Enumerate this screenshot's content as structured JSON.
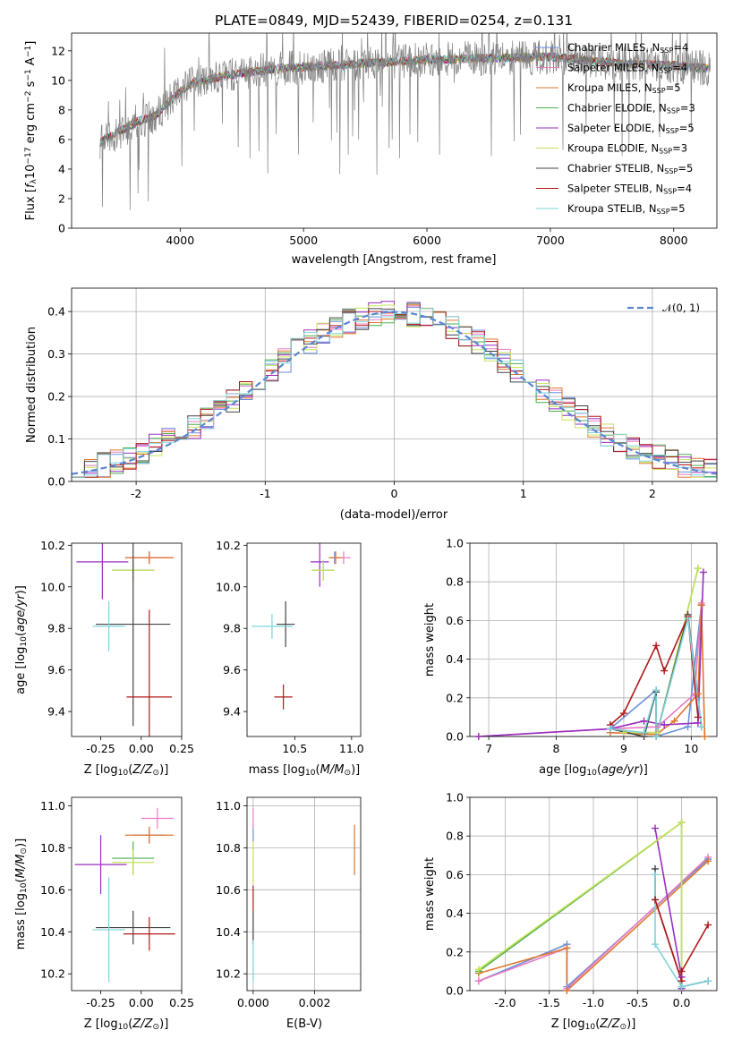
{
  "colors": {
    "Chabrier MILES": "#6a8fd8",
    "Salpeter MILES": "#e87cc0",
    "Kroupa MILES": "#e0762c",
    "Chabrier ELODIE": "#4fae4f",
    "Salpeter ELODIE": "#9a2fbf",
    "Kroupa ELODIE": "#c8e35a",
    "Chabrier STELIB": "#444444",
    "Salpeter STELIB": "#b01818",
    "Kroupa STELIB": "#7fd4dc",
    "data": "#808080",
    "normal": "#5b86d1"
  },
  "chart_data": [
    {
      "id": "spectrum",
      "type": "line",
      "title": "PLATE=0849, MJD=52439, FIBERID=0254, z=0.131",
      "xlabel": "wavelength [Angstrom, rest frame]",
      "ylabel": "Flux [f_λ 10^-17 erg cm^-2 s^-1 A^-1]",
      "xlim": [
        3120,
        8350
      ],
      "ylim": [
        0,
        13.2
      ],
      "xticks": [
        4000,
        5000,
        6000,
        7000,
        8000
      ],
      "yticks": [
        0,
        2,
        4,
        6,
        8,
        10,
        12
      ],
      "grid": false,
      "legend_position": "right",
      "continuum": {
        "x": [
          3350,
          3500,
          3650,
          3800,
          3950,
          4100,
          4300,
          4500,
          4800,
          5200,
          5600,
          6000,
          6500,
          7000,
          7500,
          8000,
          8300
        ],
        "y": [
          5.8,
          6.5,
          7.2,
          7.6,
          8.9,
          9.8,
          10.2,
          10.5,
          10.8,
          11.0,
          11.2,
          11.4,
          11.5,
          11.6,
          11.2,
          11.0,
          10.8
        ]
      },
      "legend": [
        {
          "label": "Chabrier MILES, N_SSP=4",
          "text": "Chabrier MILES, N",
          "sub": "SSP",
          "suffix": "=4",
          "color_key": "Chabrier MILES"
        },
        {
          "label": "Salpeter MILES, N_SSP=4",
          "text": "Salpeter MILES, N",
          "sub": "SSP",
          "suffix": "=4",
          "color_key": "Salpeter MILES"
        },
        {
          "label": "Kroupa MILES, N_SSP=5",
          "text": "Kroupa MILES, N",
          "sub": "SSP",
          "suffix": "=5",
          "color_key": "Kroupa MILES"
        },
        {
          "label": "Chabrier ELODIE, N_SSP=3",
          "text": "Chabrier ELODIE, N",
          "sub": "SSP",
          "suffix": "=3",
          "color_key": "Chabrier ELODIE"
        },
        {
          "label": "Salpeter ELODIE, N_SSP=5",
          "text": "Salpeter ELODIE, N",
          "sub": "SSP",
          "suffix": "=5",
          "color_key": "Salpeter ELODIE"
        },
        {
          "label": "Kroupa ELODIE, N_SSP=3",
          "text": "Kroupa ELODIE, N",
          "sub": "SSP",
          "suffix": "=3",
          "color_key": "Kroupa ELODIE"
        },
        {
          "label": "Chabrier STELIB, N_SSP=5",
          "text": "Chabrier STELIB, N",
          "sub": "SSP",
          "suffix": "=5",
          "color_key": "Chabrier STELIB"
        },
        {
          "label": "Salpeter STELIB, N_SSP=4",
          "text": "Salpeter STELIB, N",
          "sub": "SSP",
          "suffix": "=4",
          "color_key": "Salpeter STELIB"
        },
        {
          "label": "Kroupa STELIB, N_SSP=5",
          "text": "Kroupa STELIB, N",
          "sub": "SSP",
          "suffix": "=5",
          "color_key": "Kroupa STELIB"
        }
      ]
    },
    {
      "id": "residuals",
      "type": "step",
      "xlabel": "(data-model)/error",
      "ylabel": "Normed distribution",
      "xlim": [
        -2.5,
        2.5
      ],
      "ylim": [
        0,
        0.455
      ],
      "xticks": [
        -2,
        -1,
        0,
        1,
        2
      ],
      "yticks": [
        0.0,
        0.1,
        0.2,
        0.3,
        0.4
      ],
      "grid": true,
      "legend_position": "top-right",
      "normal_label": "𝒩(0, 1)",
      "bin_width": 0.1
    },
    {
      "id": "z_age",
      "type": "errorbar",
      "xlabel": "Z [log10(Z/Z⊙)]",
      "ylabel": "age [log10(age/yr)]",
      "xlim": [
        -0.43,
        0.25
      ],
      "ylim": [
        9.28,
        10.21
      ],
      "xticks": [
        -0.25,
        0.0,
        0.25
      ],
      "yticks": [
        9.4,
        9.6,
        9.8,
        10.0,
        10.2
      ],
      "points": [
        {
          "model": "Chabrier MILES",
          "x": 0.05,
          "xerr": 0.1,
          "y": 10.14,
          "yerr": 0.03
        },
        {
          "model": "Salpeter MILES",
          "x": 0.05,
          "xerr": 0.15,
          "y": 10.14,
          "yerr": 0.03
        },
        {
          "model": "Kroupa MILES",
          "x": 0.05,
          "xerr": 0.15,
          "y": 10.14,
          "yerr": 0.03
        },
        {
          "model": "Chabrier ELODIE",
          "x": -0.05,
          "xerr": 0.13,
          "y": 10.08,
          "yerr": 0.05
        },
        {
          "model": "Salpeter ELODIE",
          "x": -0.24,
          "xerr": 0.16,
          "y": 10.12,
          "yerr": 0.18
        },
        {
          "model": "Kroupa ELODIE",
          "x": -0.05,
          "xerr": 0.13,
          "y": 10.08,
          "yerr": 0.05
        },
        {
          "model": "Chabrier STELIB",
          "x": -0.05,
          "xerr": 0.23,
          "y": 9.82,
          "yerr": 0.49
        },
        {
          "model": "Salpeter STELIB",
          "x": 0.05,
          "xerr": 0.14,
          "y": 9.47,
          "yerr": 0.42
        },
        {
          "model": "Kroupa STELIB",
          "x": -0.2,
          "xerr": 0.1,
          "y": 9.81,
          "yerr": 0.12
        }
      ]
    },
    {
      "id": "mass_age",
      "type": "errorbar",
      "xlabel": "mass [log10(M/M⊙)]",
      "ylabel": "",
      "xlim": [
        10.08,
        11.08
      ],
      "ylim": [
        9.28,
        10.21
      ],
      "xticks": [
        10.5,
        11.0
      ],
      "yticks": [
        9.4,
        9.6,
        9.8,
        10.0,
        10.2
      ],
      "points": [
        {
          "model": "Chabrier MILES",
          "x": 10.85,
          "xerr": 0.05,
          "y": 10.14,
          "yerr": 0.03
        },
        {
          "model": "Salpeter MILES",
          "x": 10.93,
          "xerr": 0.06,
          "y": 10.14,
          "yerr": 0.03
        },
        {
          "model": "Kroupa MILES",
          "x": 10.86,
          "xerr": 0.06,
          "y": 10.14,
          "yerr": 0.03
        },
        {
          "model": "Chabrier ELODIE",
          "x": 10.75,
          "xerr": 0.1,
          "y": 10.08,
          "yerr": 0.05
        },
        {
          "model": "Salpeter ELODIE",
          "x": 10.72,
          "xerr": 0.08,
          "y": 10.12,
          "yerr": 0.12
        },
        {
          "model": "Kroupa ELODIE",
          "x": 10.75,
          "xerr": 0.1,
          "y": 10.08,
          "yerr": 0.05
        },
        {
          "model": "Chabrier STELIB",
          "x": 10.42,
          "xerr": 0.08,
          "y": 9.82,
          "yerr": 0.11
        },
        {
          "model": "Salpeter STELIB",
          "x": 10.4,
          "xerr": 0.08,
          "y": 9.47,
          "yerr": 0.06
        },
        {
          "model": "Kroupa STELIB",
          "x": 10.3,
          "xerr": 0.18,
          "y": 9.81,
          "yerr": 0.06
        }
      ]
    },
    {
      "id": "age_weight",
      "type": "line",
      "xlabel": "age [log10(age/yr)]",
      "ylabel": "mass weight",
      "xlim": [
        6.72,
        10.38
      ],
      "ylim": [
        0,
        1.0
      ],
      "xticks": [
        7,
        8,
        9,
        10
      ],
      "yticks": [
        0.0,
        0.2,
        0.4,
        0.6,
        0.8,
        1.0
      ],
      "grid": true,
      "series": [
        {
          "model": "Chabrier MILES",
          "x": [
            8.8,
            9.48,
            9.48,
            9.95,
            10.15
          ],
          "y": [
            0.04,
            0.24,
            0.0,
            0.05,
            0.68
          ]
        },
        {
          "model": "Salpeter MILES",
          "x": [
            6.85,
            8.8,
            9.5,
            10.05,
            10.15
          ],
          "y": [
            0.0,
            0.04,
            0.05,
            0.22,
            0.69
          ]
        },
        {
          "model": "Kroupa MILES",
          "x": [
            8.8,
            9.48,
            9.75,
            10.1,
            10.15,
            10.2
          ],
          "y": [
            0.02,
            0.01,
            0.08,
            0.22,
            0.68,
            0.0
          ]
        },
        {
          "model": "Chabrier ELODIE",
          "x": [
            9.0,
            9.5,
            10.1
          ],
          "y": [
            0.02,
            0.02,
            0.87
          ]
        },
        {
          "model": "Salpeter ELODIE",
          "x": [
            6.85,
            8.8,
            9.3,
            9.6,
            10.1,
            10.18
          ],
          "y": [
            0.0,
            0.04,
            0.08,
            0.06,
            0.07,
            0.85
          ]
        },
        {
          "model": "Kroupa ELODIE",
          "x": [
            9.0,
            9.5,
            10.1
          ],
          "y": [
            0.02,
            0.02,
            0.87
          ]
        },
        {
          "model": "Chabrier STELIB",
          "x": [
            8.8,
            9.3,
            9.48,
            9.48,
            9.95,
            10.15
          ],
          "y": [
            0.04,
            0.0,
            0.23,
            0.0,
            0.63,
            0.05
          ]
        },
        {
          "model": "Salpeter STELIB",
          "x": [
            8.8,
            9.0,
            9.48,
            9.6,
            9.95,
            10.1
          ],
          "y": [
            0.06,
            0.12,
            0.47,
            0.34,
            0.62,
            0.1
          ]
        },
        {
          "model": "Kroupa STELIB",
          "x": [
            8.8,
            9.3,
            9.48,
            9.48,
            9.95,
            10.15
          ],
          "y": [
            0.04,
            0.02,
            0.24,
            0.0,
            0.61,
            0.05
          ]
        }
      ]
    },
    {
      "id": "z_mass",
      "type": "errorbar",
      "xlabel": "Z [log10(Z/Z⊙)]",
      "ylabel": "mass [log10(M/M⊙)]",
      "xlim": [
        -0.43,
        0.25
      ],
      "ylim": [
        10.12,
        11.04
      ],
      "xticks": [
        -0.25,
        0.0,
        0.25
      ],
      "yticks": [
        10.2,
        10.4,
        10.6,
        10.8,
        11.0
      ],
      "points": [
        {
          "model": "Chabrier MILES",
          "x": 0.05,
          "xerr": 0.1,
          "y": 10.86,
          "yerr": 0.04
        },
        {
          "model": "Salpeter MILES",
          "x": 0.1,
          "xerr": 0.1,
          "y": 10.94,
          "yerr": 0.05
        },
        {
          "model": "Kroupa MILES",
          "x": 0.05,
          "xerr": 0.15,
          "y": 10.86,
          "yerr": 0.04
        },
        {
          "model": "Chabrier ELODIE",
          "x": -0.05,
          "xerr": 0.13,
          "y": 10.75,
          "yerr": 0.08
        },
        {
          "model": "Salpeter ELODIE",
          "x": -0.25,
          "xerr": 0.16,
          "y": 10.72,
          "yerr": 0.14
        },
        {
          "model": "Kroupa ELODIE",
          "x": -0.05,
          "xerr": 0.13,
          "y": 10.73,
          "yerr": 0.06
        },
        {
          "model": "Chabrier STELIB",
          "x": -0.05,
          "xerr": 0.23,
          "y": 10.42,
          "yerr": 0.08
        },
        {
          "model": "Salpeter STELIB",
          "x": 0.05,
          "xerr": 0.16,
          "y": 10.39,
          "yerr": 0.08
        },
        {
          "model": "Kroupa STELIB",
          "x": -0.2,
          "xerr": 0.1,
          "y": 10.41,
          "yerr": 0.25
        }
      ]
    },
    {
      "id": "ebv_mass",
      "type": "errorbar",
      "xlabel": "E(B-V)",
      "ylabel": "",
      "xlim": [
        -0.0002,
        0.0035
      ],
      "ylim": [
        10.12,
        11.04
      ],
      "xticks": [
        0.0,
        0.002
      ],
      "yticks": [
        10.2,
        10.4,
        10.6,
        10.8,
        11.0
      ],
      "grid": true,
      "points": [
        {
          "model": "Salpeter MILES",
          "x": 0.0,
          "xerr": 0,
          "y": 10.94,
          "yerr": 0.05
        },
        {
          "model": "Chabrier MILES",
          "x": 0.0,
          "xerr": 0,
          "y": 10.86,
          "yerr": 0.03
        },
        {
          "model": "Kroupa MILES",
          "x": 0.0033,
          "xerr": 0,
          "y": 10.79,
          "yerr": 0.12
        },
        {
          "model": "Kroupa ELODIE",
          "x": 0.0,
          "xerr": 0,
          "y": 10.73,
          "yerr": 0.1
        },
        {
          "model": "Salpeter STELIB",
          "x": 0.0,
          "xerr": 0,
          "y": 10.56,
          "yerr": 0.06
        },
        {
          "model": "Chabrier STELIB",
          "x": 0.0,
          "xerr": 0,
          "y": 10.42,
          "yerr": 0.08
        },
        {
          "model": "Kroupa STELIB",
          "x": 0.0,
          "xerr": 0,
          "y": 10.26,
          "yerr": 0.1
        }
      ]
    },
    {
      "id": "z_weight",
      "type": "line",
      "xlabel": "Z [log10(Z/Z⊙)]",
      "ylabel": "mass weight",
      "xlim": [
        -2.4,
        0.4
      ],
      "ylim": [
        0,
        1.0
      ],
      "xticks": [
        -2.0,
        -1.5,
        -1.0,
        -0.5,
        0.0
      ],
      "yticks": [
        0.0,
        0.2,
        0.4,
        0.6,
        0.8,
        1.0
      ],
      "grid": true,
      "series": [
        {
          "model": "Chabrier MILES",
          "x": [
            -2.3,
            -1.3,
            -1.3,
            0.3
          ],
          "y": [
            0.05,
            0.24,
            0.02,
            0.68
          ]
        },
        {
          "model": "Salpeter MILES",
          "x": [
            -2.3,
            -1.3,
            -1.3,
            0.3
          ],
          "y": [
            0.05,
            0.22,
            0.01,
            0.69
          ]
        },
        {
          "model": "Kroupa MILES",
          "x": [
            -2.3,
            -1.3,
            -1.3,
            0.3
          ],
          "y": [
            0.09,
            0.22,
            0.0,
            0.67
          ]
        },
        {
          "model": "Chabrier ELODIE",
          "x": [
            -2.3,
            0.0,
            0.0
          ],
          "y": [
            0.1,
            0.87,
            0.02
          ]
        },
        {
          "model": "Salpeter ELODIE",
          "x": [
            -0.3,
            0.0,
            0.0
          ],
          "y": [
            0.84,
            0.07,
            0.01
          ]
        },
        {
          "model": "Kroupa ELODIE",
          "x": [
            -2.3,
            0.0,
            0.0
          ],
          "y": [
            0.11,
            0.87,
            0.02
          ]
        },
        {
          "model": "Chabrier STELIB",
          "x": [
            -0.3,
            -0.3,
            0.0,
            0.0,
            0.3
          ],
          "y": [
            0.63,
            0.47,
            0.05,
            0.02,
            0.05
          ]
        },
        {
          "model": "Salpeter STELIB",
          "x": [
            -0.3,
            0.0,
            0.0,
            0.3
          ],
          "y": [
            0.47,
            0.05,
            0.1,
            0.34
          ]
        },
        {
          "model": "Kroupa STELIB",
          "x": [
            -0.3,
            -0.3,
            0.0,
            0.3
          ],
          "y": [
            0.6,
            0.24,
            0.02,
            0.05
          ]
        }
      ]
    }
  ]
}
